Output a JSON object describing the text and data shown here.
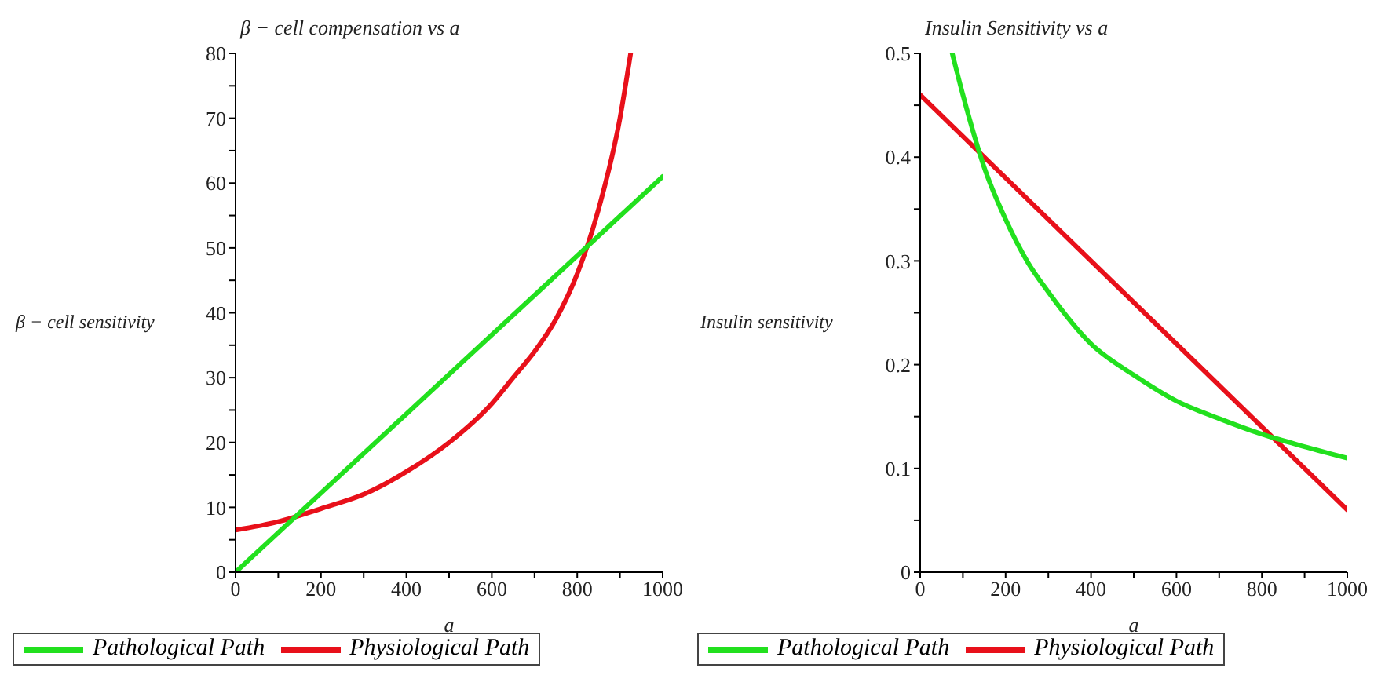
{
  "chart_data": [
    {
      "type": "line",
      "title": "β − cell compensation vs a",
      "xlabel": "a",
      "ylabel": "β − cell sensitivity",
      "xlim": [
        0,
        1000
      ],
      "ylim": [
        0,
        80
      ],
      "xticks": [
        0,
        {
          "value": 100,
          "label": null
        },
        200,
        {
          "value": 300,
          "label": null
        },
        400,
        {
          "value": 500,
          "label": null
        },
        600,
        {
          "value": 700,
          "label": null
        },
        800,
        {
          "value": 900,
          "label": null
        },
        1000
      ],
      "yticks": [
        0,
        {
          "value": 5,
          "label": null
        },
        10,
        {
          "value": 15,
          "label": null
        },
        20,
        {
          "value": 25,
          "label": null
        },
        30,
        {
          "value": 35,
          "label": null
        },
        40,
        {
          "value": 45,
          "label": null
        },
        50,
        {
          "value": 55,
          "label": null
        },
        60,
        {
          "value": 65,
          "label": null
        },
        70,
        {
          "value": 75,
          "label": null
        },
        80
      ],
      "legend": "bottom",
      "series": [
        {
          "name": "Physiological Path",
          "color": "#e8101a",
          "x": [
            0,
            100,
            200,
            300,
            400,
            500,
            600,
            650,
            700,
            750,
            800,
            850,
            900,
            925
          ],
          "values": [
            6.5,
            7.8,
            9.8,
            12,
            15.5,
            20,
            26,
            30,
            34,
            39,
            46,
            56,
            70,
            80
          ]
        },
        {
          "name": "Pathological Path",
          "color": "#22e01e",
          "x": [
            0,
            1000
          ],
          "values": [
            0,
            61
          ]
        }
      ]
    },
    {
      "type": "line",
      "title": "Insulin Sensitivity vs a",
      "xlabel": "a",
      "ylabel": "Insulin sensitivity",
      "xlim": [
        0,
        1000
      ],
      "ylim": [
        0,
        0.5
      ],
      "xticks": [
        0,
        {
          "value": 100,
          "label": null
        },
        200,
        {
          "value": 300,
          "label": null
        },
        400,
        {
          "value": 500,
          "label": null
        },
        600,
        {
          "value": 700,
          "label": null
        },
        800,
        {
          "value": 900,
          "label": null
        },
        1000
      ],
      "yticks": [
        0,
        {
          "value": 0.05,
          "label": null
        },
        0.1,
        {
          "value": 0.15,
          "label": null
        },
        0.2,
        {
          "value": 0.25,
          "label": null
        },
        0.3,
        {
          "value": 0.35,
          "label": null
        },
        0.4,
        {
          "value": 0.45,
          "label": null
        },
        0.5
      ],
      "legend": "bottom",
      "series": [
        {
          "name": "Physiological Path",
          "color": "#e8101a",
          "x": [
            0,
            1000
          ],
          "values": [
            0.46,
            0.06
          ]
        },
        {
          "name": "Pathological Path",
          "color": "#22e01e",
          "x": [
            75,
            100,
            150,
            200,
            250,
            300,
            400,
            500,
            600,
            700,
            800,
            900,
            1000
          ],
          "values": [
            0.5,
            0.46,
            0.39,
            0.34,
            0.3,
            0.27,
            0.22,
            0.19,
            0.165,
            0.148,
            0.133,
            0.121,
            0.11
          ]
        }
      ]
    }
  ]
}
